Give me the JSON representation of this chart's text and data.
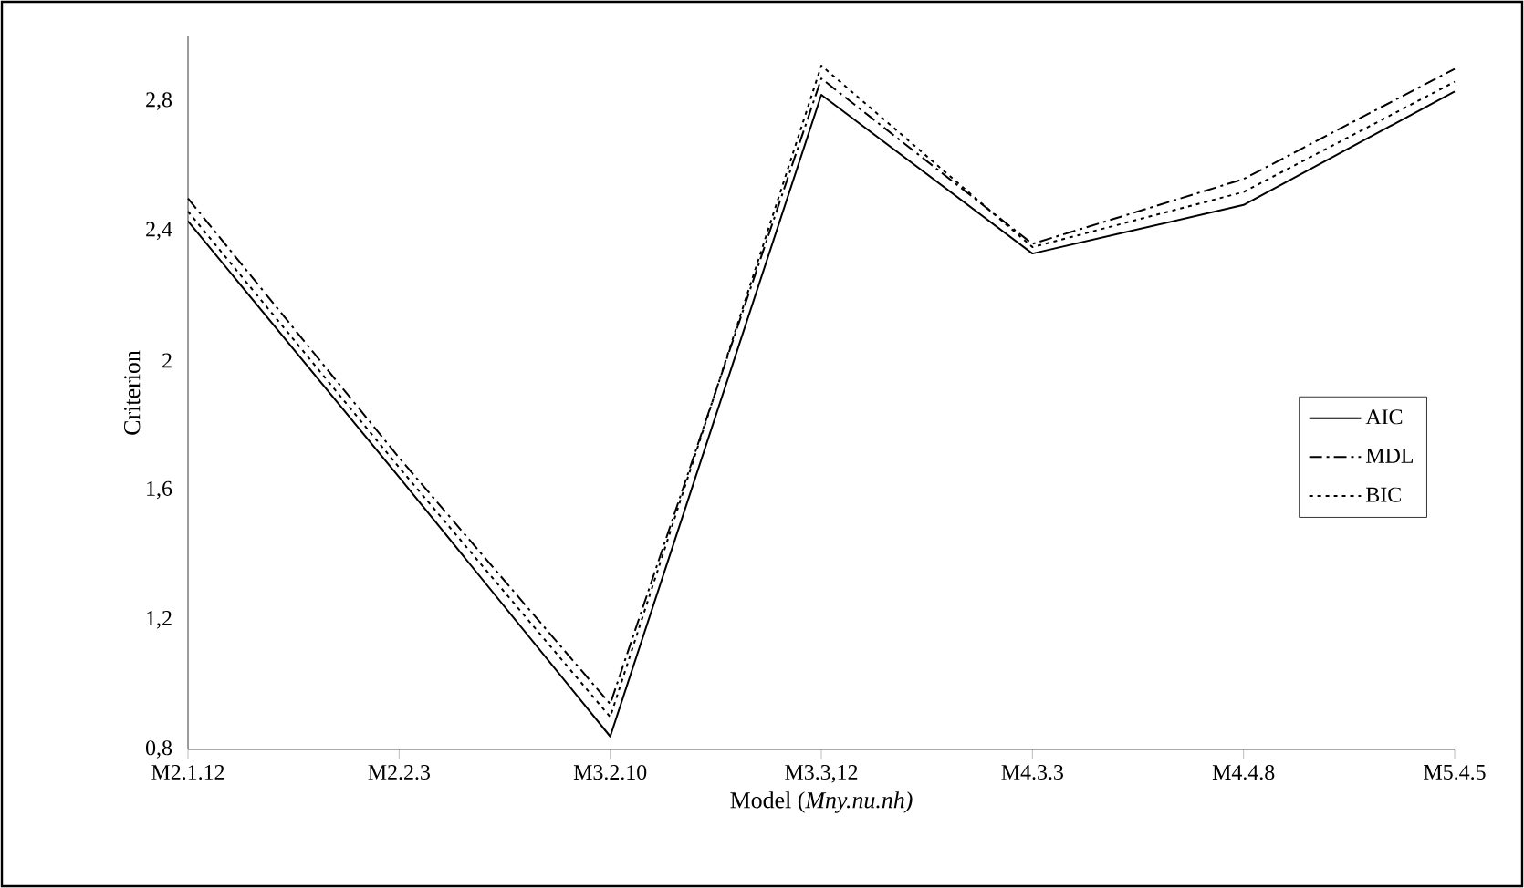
{
  "chart_data": {
    "type": "line",
    "xlabel": "Model (*Mny.nu.nh)*",
    "ylabel": "Criterion",
    "categories": [
      "M2.1.12",
      "M2.2.3",
      "M3.2.10",
      "M3.3,12",
      "M4.3.3",
      "M4.4.8",
      "M5.4.5"
    ],
    "series": [
      {
        "name": "AIC",
        "color": "#000000",
        "line_style": "solid",
        "values": [
          2.43,
          1.64,
          0.84,
          2.82,
          2.33,
          2.48,
          2.83
        ]
      },
      {
        "name": "MDL",
        "color": "#000000",
        "line_style": "dashdot",
        "values": [
          2.5,
          1.7,
          0.94,
          2.87,
          2.36,
          2.56,
          2.9
        ]
      },
      {
        "name": "BIC",
        "color": "#000000",
        "line_style": "dotted",
        "values": [
          2.46,
          1.67,
          0.9,
          2.91,
          2.35,
          2.52,
          2.86
        ]
      }
    ],
    "ylim": [
      0.8,
      3.0
    ],
    "yticks": [
      {
        "value": 0.8,
        "label": "0,8"
      },
      {
        "value": 1.2,
        "label": "1,2"
      },
      {
        "value": 1.6,
        "label": "1,6"
      },
      2,
      {
        "value": 2.4,
        "label": "2,4"
      },
      {
        "value": 2.8,
        "label": "2,8"
      }
    ],
    "grid": false,
    "legend": "right",
    "marker": "none"
  }
}
